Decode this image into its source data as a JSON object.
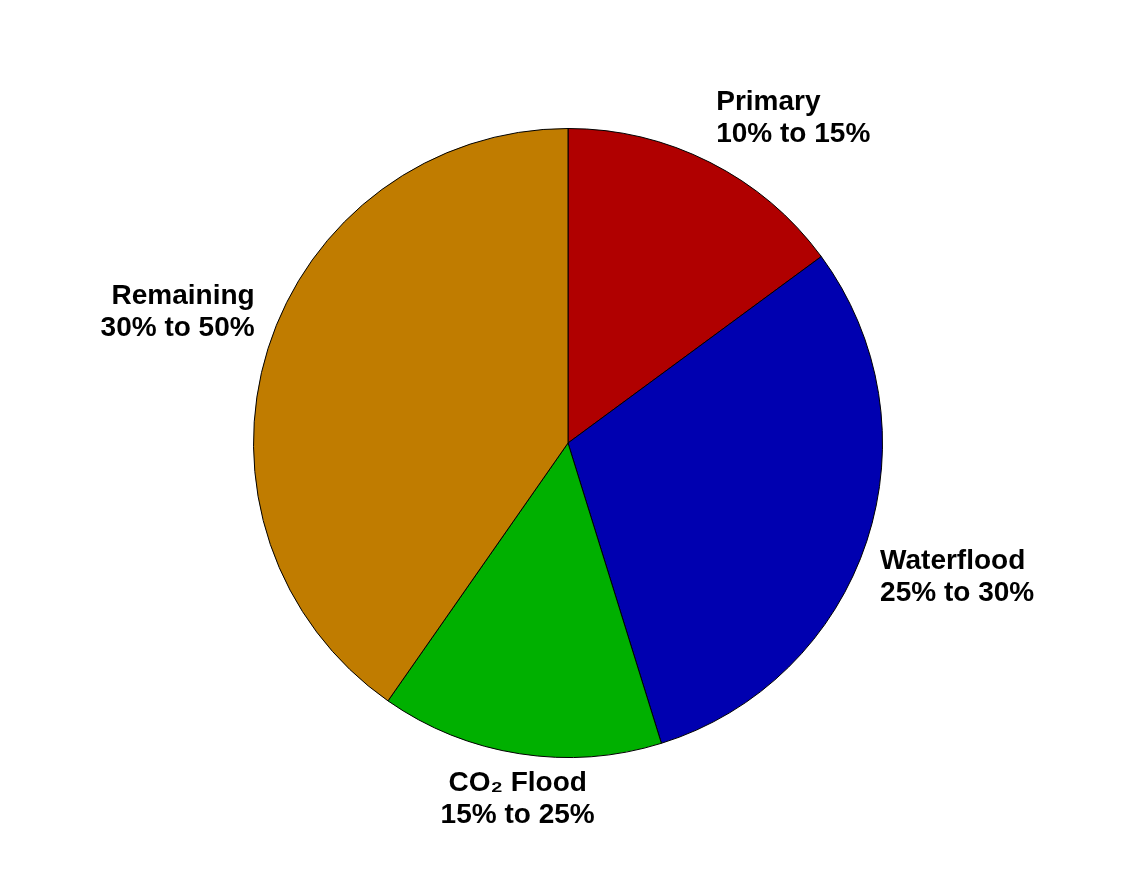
{
  "chart_data": {
    "type": "pie",
    "categories": [
      "Primary 10% to 15%",
      "Waterflood 25% to 30%",
      "CO₂ Flood 15% to 25%",
      "Remaining 30% to 50%"
    ],
    "values": [
      14.9,
      30.3,
      14.5,
      40.3
    ],
    "colors": [
      "#b00000",
      "#0000b0",
      "#00b000",
      "#c07c00"
    ],
    "legend": false
  }
}
